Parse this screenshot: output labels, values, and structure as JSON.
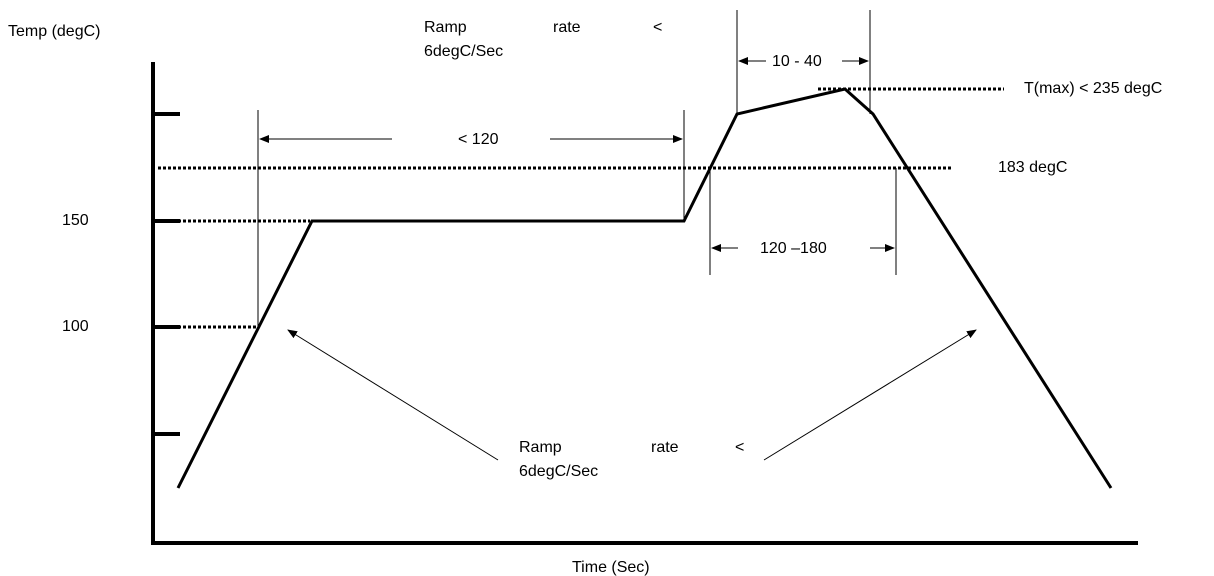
{
  "axes": {
    "y_title": "Temp (degC)",
    "x_title": "Time (Sec)",
    "tick_150": "150",
    "tick_100": "100"
  },
  "annotations": {
    "top_ramp": {
      "word1": "Ramp",
      "word2": "rate",
      "word3": "<",
      "line2": "6degC/Sec"
    },
    "bottom_ramp": {
      "word1": "Ramp",
      "word2": "rate",
      "word3": "<",
      "line2": "6degC/Sec"
    },
    "soak_duration": "< 120",
    "peak_duration": "10 - 40",
    "above_liquidus_duration": "120 –180",
    "tmax": "T(max) < 235 degC",
    "liquidus": "183 degC"
  }
}
